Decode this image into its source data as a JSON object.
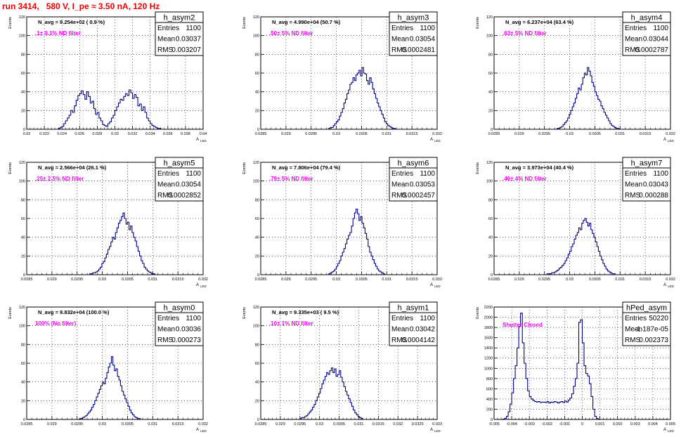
{
  "run_title": "run 3414,   580 V, I_pe ≈ 3.50 nA, 120 Hz",
  "y_axis_title": "Events",
  "x_axis_title": "A",
  "x_axis_title_sub": "LED",
  "stat_labels": [
    "Entries",
    "Mean",
    "RMS"
  ],
  "colors": {
    "histogram": "#000080",
    "annotation": "#ff00ff",
    "title": "#ee0000",
    "grid": "#000000"
  },
  "chart_data": [
    {
      "type": "bar",
      "name": "h_asym2",
      "navg": "N_avg = 9.254e+02 ( 0.9 %)",
      "filter": ".1± 0.1% ND filter",
      "stats": {
        "entries": "1100",
        "mean": "0.03037",
        "rms": "0.003207"
      },
      "xlim": [
        0.02,
        0.04
      ],
      "ylim": [
        0,
        120
      ],
      "xticks": [
        0.02,
        0.022,
        0.024,
        0.026,
        0.028,
        0.03,
        0.032,
        0.034,
        0.036,
        0.038,
        0.04
      ],
      "xtick_labels": [
        "0.02",
        "0.022",
        "0.024",
        "0.026",
        "0.028",
        "0.03",
        "0.032",
        "0.034",
        "0.036",
        "0.038",
        "0.04"
      ],
      "yticks": [
        0,
        20,
        40,
        60,
        80,
        100,
        120
      ],
      "ytick_labels": [
        "0",
        "20",
        "40",
        "60",
        "80",
        "100",
        "120"
      ],
      "bins": {
        "start": 0.0236,
        "width": 0.0002,
        "counts": [
          1,
          2,
          3,
          6,
          9,
          12,
          15,
          20,
          18,
          25,
          31,
          36,
          38,
          41,
          37,
          32,
          40,
          35,
          28,
          30,
          22,
          16,
          18,
          12,
          9,
          5,
          4,
          3,
          6,
          8,
          12,
          15,
          20,
          24,
          28,
          32,
          31,
          35,
          38,
          36,
          42,
          39,
          33,
          37,
          34,
          25,
          27,
          20,
          24,
          18,
          12,
          9,
          6,
          4,
          3,
          2,
          1,
          1
        ]
      }
    },
    {
      "type": "bar",
      "name": "h_asym3",
      "navg": "N_avg = 4.990e+04 (50.7 %)",
      "filter": ".50± 5% ND filter",
      "stats": {
        "entries": "1100",
        "mean": "0.03054",
        "rms": "0.0002481"
      },
      "xlim": [
        0.0285,
        0.032
      ],
      "ylim": [
        0,
        120
      ],
      "xticks": [
        0.0285,
        0.029,
        0.0295,
        0.03,
        0.0305,
        0.031,
        0.0315,
        0.032
      ],
      "xtick_labels": [
        "0.0285",
        "0.029",
        "0.0295",
        "0.03",
        "0.0305",
        "0.031",
        "0.0315",
        "0.032"
      ],
      "yticks": [
        0,
        20,
        40,
        60,
        80,
        100,
        120
      ],
      "ytick_labels": [
        "0",
        "20",
        "40",
        "60",
        "80",
        "100",
        "120"
      ],
      "bins": {
        "start": 0.02985,
        "width": 3e-05,
        "counts": [
          1,
          2,
          2,
          4,
          6,
          8,
          10,
          14,
          18,
          22,
          28,
          32,
          38,
          42,
          48,
          50,
          55,
          52,
          58,
          60,
          63,
          57,
          66,
          60,
          59,
          52,
          48,
          55,
          50,
          43,
          38,
          33,
          28,
          24,
          20,
          16,
          12,
          8,
          6,
          4,
          3,
          2,
          1,
          1
        ]
      }
    },
    {
      "type": "bar",
      "name": "h_asym4",
      "navg": "N_avg = 6.237e+04 (63.4 %)",
      "filter": ".63± 5% ND filter",
      "stats": {
        "entries": "1100",
        "mean": "0.03044",
        "rms": "0.0002787"
      },
      "xlim": [
        0.0285,
        0.032
      ],
      "ylim": [
        0,
        120
      ],
      "xticks": [
        0.0285,
        0.029,
        0.0295,
        0.03,
        0.0305,
        0.031,
        0.0315,
        0.032
      ],
      "xtick_labels": [
        "0.0285",
        "0.029",
        "0.0295",
        "0.03",
        "0.0305",
        "0.031",
        "0.0315",
        "0.032"
      ],
      "yticks": [
        0,
        20,
        40,
        60,
        80,
        100,
        120
      ],
      "ytick_labels": [
        "0",
        "20",
        "40",
        "60",
        "80",
        "100",
        "120"
      ],
      "bins": {
        "start": 0.02975,
        "width": 3e-05,
        "counts": [
          1,
          1,
          2,
          3,
          5,
          7,
          9,
          12,
          16,
          20,
          24,
          28,
          33,
          38,
          44,
          42,
          48,
          55,
          60,
          58,
          66,
          62,
          57,
          50,
          46,
          40,
          36,
          32,
          30,
          25,
          22,
          18,
          15,
          12,
          9,
          6,
          4,
          3,
          2,
          1,
          1
        ]
      }
    },
    {
      "type": "bar",
      "name": "h_asym5",
      "navg": "N_avg = 2.566e+04 (26.1 %)",
      "filter": ".25± 2.5% ND filter",
      "stats": {
        "entries": "1100",
        "mean": "0.03054",
        "rms": "0.0002852"
      },
      "xlim": [
        0.0285,
        0.032
      ],
      "ylim": [
        0,
        120
      ],
      "xticks": [
        0.0285,
        0.029,
        0.0295,
        0.03,
        0.0305,
        0.031,
        0.0315,
        0.032
      ],
      "xtick_labels": [
        "0.0285",
        "0.029",
        "0.0295",
        "0.03",
        "0.0305",
        "0.031",
        "0.0315",
        "0.032"
      ],
      "yticks": [
        0,
        20,
        40,
        60,
        80,
        100,
        120
      ],
      "ytick_labels": [
        "0",
        "20",
        "40",
        "60",
        "80",
        "100",
        "120"
      ],
      "bins": {
        "start": 0.02975,
        "width": 3e-05,
        "counts": [
          1,
          1,
          2,
          2,
          3,
          4,
          6,
          8,
          12,
          14,
          18,
          22,
          27,
          30,
          35,
          40,
          38,
          45,
          50,
          55,
          58,
          62,
          66,
          60,
          54,
          56,
          48,
          52,
          45,
          40,
          36,
          30,
          25,
          20,
          15,
          12,
          8,
          6,
          4,
          3,
          2,
          1,
          1
        ]
      }
    },
    {
      "type": "bar",
      "name": "h_asym6",
      "navg": "N_avg = 7.806e+04 (79.4 %)",
      "filter": ".79± 5% ND filter",
      "stats": {
        "entries": "1100",
        "mean": "0.03053",
        "rms": "0.0002457"
      },
      "xlim": [
        0.0285,
        0.032
      ],
      "ylim": [
        0,
        120
      ],
      "xticks": [
        0.0285,
        0.029,
        0.0295,
        0.03,
        0.0305,
        0.031,
        0.0315,
        0.032
      ],
      "xtick_labels": [
        "0.0285",
        "0.029",
        "0.0295",
        "0.03",
        "0.0305",
        "0.031",
        "0.0315",
        "0.032"
      ],
      "yticks": [
        0,
        20,
        40,
        60,
        80,
        100,
        120
      ],
      "ytick_labels": [
        "0",
        "20",
        "40",
        "60",
        "80",
        "100",
        "120"
      ],
      "bins": {
        "start": 0.02985,
        "width": 3e-05,
        "counts": [
          1,
          2,
          3,
          4,
          6,
          9,
          12,
          15,
          20,
          24,
          28,
          33,
          38,
          42,
          45,
          52,
          60,
          66,
          70,
          65,
          58,
          62,
          55,
          50,
          44,
          38,
          30,
          24,
          20,
          16,
          12,
          9,
          6,
          4,
          3,
          2,
          1
        ]
      }
    },
    {
      "type": "bar",
      "name": "h_asym7",
      "navg": "N_avg = 3.973e+04 (40.4 %)",
      "filter": ".40± 4% ND filter",
      "stats": {
        "entries": "1100",
        "mean": "0.03043",
        "rms": "0.000288"
      },
      "xlim": [
        0.0285,
        0.032
      ],
      "ylim": [
        0,
        120
      ],
      "xticks": [
        0.0285,
        0.029,
        0.0295,
        0.03,
        0.0305,
        0.031,
        0.0315,
        0.032
      ],
      "xtick_labels": [
        "0.0285",
        "0.029",
        "0.0295",
        "0.03",
        "0.0305",
        "0.031",
        "0.0315",
        "0.032"
      ],
      "yticks": [
        0,
        20,
        40,
        60,
        80,
        100,
        120
      ],
      "ytick_labels": [
        "0",
        "20",
        "40",
        "60",
        "80",
        "100",
        "120"
      ],
      "bins": {
        "start": 0.02955,
        "width": 3e-05,
        "counts": [
          1,
          1,
          1,
          2,
          2,
          3,
          4,
          5,
          7,
          8,
          10,
          12,
          15,
          18,
          22,
          25,
          30,
          33,
          38,
          42,
          45,
          50,
          48,
          55,
          58,
          60,
          56,
          52,
          55,
          48,
          44,
          40,
          35,
          30,
          25,
          20,
          16,
          12,
          9,
          6,
          4,
          3,
          2,
          1,
          1
        ]
      }
    },
    {
      "type": "bar",
      "name": "h_asym0",
      "navg": "N_avg = 9.832e+04 (100.0 %)",
      "filter": "100% (No filter)",
      "stats": {
        "entries": "1100",
        "mean": "0.03036",
        "rms": "0.000273"
      },
      "xlim": [
        0.0285,
        0.032
      ],
      "ylim": [
        0,
        120
      ],
      "xticks": [
        0.0285,
        0.029,
        0.0295,
        0.03,
        0.0305,
        0.031,
        0.0315,
        0.032
      ],
      "xtick_labels": [
        "0.0285",
        "0.029",
        "0.0295",
        "0.03",
        "0.0305",
        "0.031",
        "0.0315",
        "0.032"
      ],
      "yticks": [
        0,
        20,
        40,
        60,
        80,
        100,
        120
      ],
      "ytick_labels": [
        "0",
        "20",
        "40",
        "60",
        "80",
        "100",
        "120"
      ],
      "bins": {
        "start": 0.02955,
        "width": 3e-05,
        "counts": [
          1,
          1,
          2,
          3,
          4,
          6,
          8,
          10,
          13,
          16,
          20,
          24,
          28,
          32,
          36,
          40,
          38,
          44,
          50,
          56,
          60,
          67,
          58,
          52,
          54,
          46,
          42,
          36,
          30,
          26,
          22,
          18,
          14,
          10,
          7,
          5,
          3,
          2,
          1,
          1
        ]
      }
    },
    {
      "type": "bar",
      "name": "h_asym1",
      "navg": "N_avg = 9.335e+03 ( 9.5 %)",
      "filter": ".10± 1% ND filter",
      "stats": {
        "entries": "1100",
        "mean": "0.03042",
        "rms": "0.0004142"
      },
      "xlim": [
        0.0285,
        0.033
      ],
      "ylim": [
        0,
        120
      ],
      "xticks": [
        0.0285,
        0.029,
        0.0295,
        0.03,
        0.0305,
        0.031,
        0.0315,
        0.032,
        0.0325,
        0.033
      ],
      "xtick_labels": [
        "0.0285",
        "0.029",
        "0.0295",
        "0.03",
        "0.0305",
        "0.031",
        "0.0315",
        "0.032",
        "0.0325",
        "0.033"
      ],
      "yticks": [
        0,
        20,
        40,
        60,
        80,
        100,
        120
      ],
      "ytick_labels": [
        "0",
        "20",
        "40",
        "60",
        "80",
        "100",
        "120"
      ],
      "bins": {
        "start": 0.0295,
        "width": 4e-05,
        "counts": [
          1,
          2,
          2,
          3,
          4,
          6,
          8,
          10,
          13,
          16,
          20,
          24,
          28,
          33,
          38,
          42,
          46,
          50,
          48,
          52,
          55,
          50,
          54,
          46,
          48,
          52,
          45,
          40,
          35,
          30,
          26,
          22,
          18,
          14,
          10,
          7,
          5,
          3,
          2,
          1
        ]
      }
    },
    {
      "type": "bar",
      "name": "hPed_asym",
      "navg": "",
      "filter": "Shutter Closed",
      "stats": {
        "entries": "50220",
        "mean": "-1.187e-05",
        "rms": "0.002373"
      },
      "xlim": [
        -0.005,
        0.005
      ],
      "ylim": [
        0,
        2200
      ],
      "xticks": [
        -0.005,
        -0.004,
        -0.003,
        -0.002,
        -0.001,
        0,
        0.001,
        0.002,
        0.003,
        0.004,
        0.005
      ],
      "xtick_labels": [
        "-0.005",
        "-0.004",
        "-0.003",
        "-0.002",
        "-0.001",
        "0",
        "0.001",
        "0.002",
        "0.003",
        "0.004",
        "0.005"
      ],
      "yticks": [
        0,
        200,
        400,
        600,
        800,
        1000,
        1200,
        1400,
        1600,
        1800,
        2000,
        2200
      ],
      "ytick_labels": [
        "0",
        "200",
        "400",
        "600",
        "800",
        "1000",
        "1200",
        "1400",
        "1600",
        "1800",
        "2000",
        "2200"
      ],
      "bins": {
        "start": -0.0045,
        "width": 0.0001,
        "counts": [
          5,
          20,
          60,
          150,
          300,
          520,
          800,
          1050,
          1400,
          1820,
          2080,
          1500,
          1100,
          800,
          560,
          450,
          400,
          370,
          350,
          340,
          350,
          330,
          340,
          340,
          330,
          350,
          320,
          340,
          330,
          350,
          340,
          320,
          340,
          350,
          330,
          360,
          340,
          380,
          420,
          500,
          650,
          800,
          1100,
          1900,
          1950,
          1500,
          1050,
          900,
          850,
          700,
          450,
          200,
          60,
          20,
          5
        ]
      }
    }
  ]
}
